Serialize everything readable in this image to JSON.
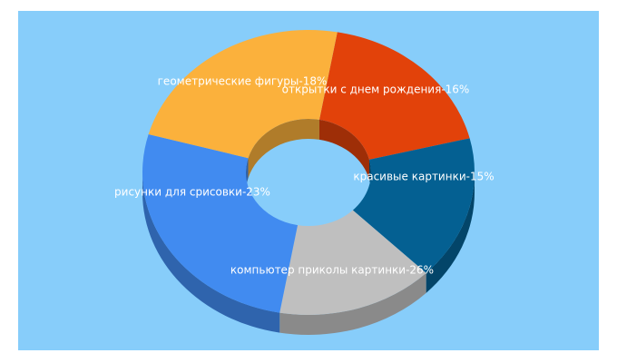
{
  "chart_data": {
    "type": "pie",
    "style": "3d-donut",
    "background_color": "#87cdfa",
    "slices": [
      {
        "label": "геометрические фигуры-18%",
        "value": 18,
        "color": "#e2420a"
      },
      {
        "label": "открытки с днем рождения-16%",
        "value": 16,
        "color": "#046092"
      },
      {
        "label": "красивые картинки-15%",
        "value": 15,
        "color": "#bfbfbf"
      },
      {
        "label": "компьютер приколы картинки-26%",
        "value": 26,
        "color": "#418bf0"
      },
      {
        "label": "рисунки для срисовки-23%",
        "value": 23,
        "color": "#fbb13c"
      }
    ]
  }
}
